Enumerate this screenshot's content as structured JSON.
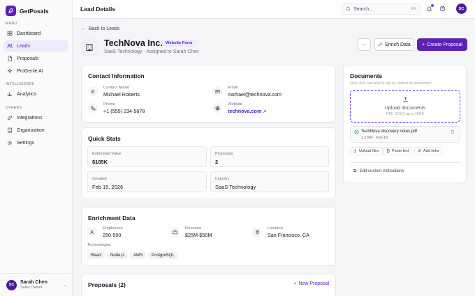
{
  "app": {
    "name": "GetPosals"
  },
  "sidebar": {
    "menu_label": "MENU",
    "menu_items": [
      {
        "label": "Dashboard",
        "icon": "dashboard-icon"
      },
      {
        "label": "Leads",
        "icon": "users-icon",
        "active": true
      },
      {
        "label": "Proposals",
        "icon": "file-icon"
      },
      {
        "label": "ProGenie AI",
        "icon": "sparkle-icon"
      }
    ],
    "intelligence_label": "INTELLIGENCE",
    "intelligence_items": [
      {
        "label": "Analytics",
        "icon": "chart-icon"
      }
    ],
    "others_label": "OTHERS",
    "other_items": [
      {
        "label": "Integrations",
        "icon": "link-icon"
      },
      {
        "label": "Organization",
        "icon": "building-icon"
      },
      {
        "label": "Settings",
        "icon": "gear-icon"
      }
    ],
    "user": {
      "initials": "SC",
      "name": "Sarah Chen",
      "role": "Sales Owner"
    }
  },
  "header": {
    "title": "Lead Details",
    "search_placeholder": "Search...",
    "search_shortcut": "⌘K",
    "avatar_initials": "SC"
  },
  "lead": {
    "back_label": "Back to Leads",
    "company": "TechNova Inc.",
    "source_badge": "Website Form",
    "subline": "SaaS Technology · Assigned to Sarah Chen",
    "more_label": "···",
    "enrich_label": "Enrich Data",
    "create_label": "Create Proposal"
  },
  "contact": {
    "title": "Contact Information",
    "name_label": "Contact Name",
    "name": "Michael Roberts",
    "email_label": "Email",
    "email": "michael@technova.com",
    "phone_label": "Phone",
    "phone": "+1 (555) 234-5678",
    "website_label": "Website",
    "website": "technova.com"
  },
  "stats": {
    "title": "Quick Stats",
    "estimated_label": "Estimated Value",
    "estimated": "$185K",
    "proposals_label": "Proposals",
    "proposals": "2",
    "created_label": "Created",
    "created": "Feb 15, 2026",
    "industry_label": "Industry",
    "industry": "SaaS Technology"
  },
  "enrichment": {
    "title": "Enrichment Data",
    "employees_label": "Employees",
    "employees": "250-500",
    "revenue_label": "Revenue",
    "revenue": "$25M-$50M",
    "location_label": "Location",
    "location": "San Francisco, CA",
    "tech_label": "Technologies",
    "technologies": [
      "React",
      "Node.js",
      "AWS",
      "PostgreSQL"
    ]
  },
  "proposals_section": {
    "title": "Proposals (2)",
    "new_label": "New Proposal"
  },
  "documents": {
    "title": "Documents",
    "subtitle": "Files, text, and links to use as context for enrichment",
    "upload_title": "Upload documents",
    "upload_hint": "PDF, DOCX up to 10MB",
    "file_name": "TechNova discovery notes.pdf",
    "file_meta": "1.2 MB · Feb 16",
    "upload_files_label": "Upload files",
    "paste_text_label": "Paste text",
    "add_links_label": "Add links",
    "custom_label": "Edit custom instructions"
  },
  "colors": {
    "accent": "#5b21b6",
    "accent_light": "#ede9fe",
    "success": "#16a34a"
  }
}
